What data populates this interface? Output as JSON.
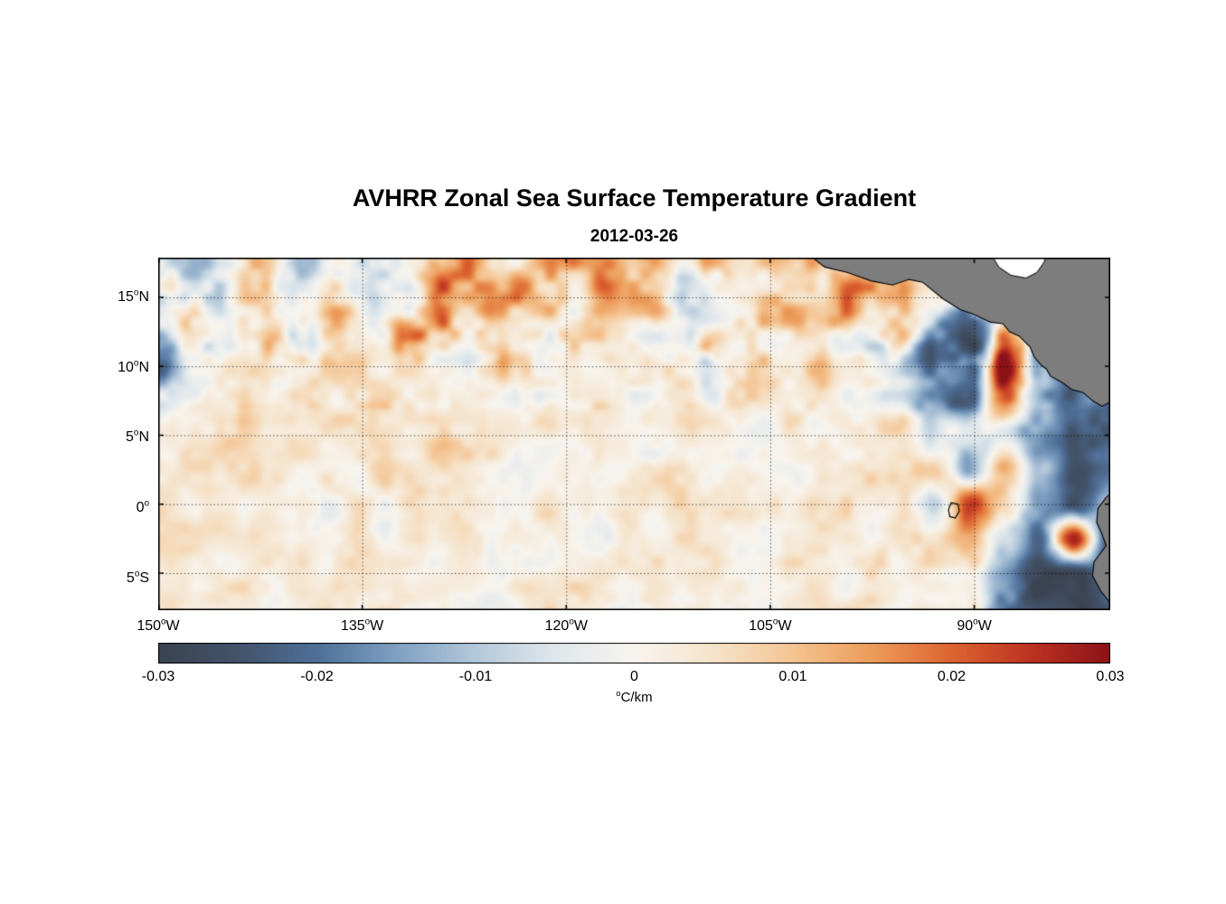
{
  "chart_data": {
    "type": "heatmap",
    "title": "AVHRR Zonal Sea Surface Temperature Gradient",
    "subtitle": "2012-03-26",
    "units_label": "C/km",
    "deg_symbol": "o",
    "lon_range": [
      -150,
      -80
    ],
    "lat_range": [
      -7.69,
      17.88
    ],
    "lon_tick_values": [
      -150,
      -135,
      -120,
      -105,
      -90
    ],
    "lat_tick_values": [
      15,
      10,
      5,
      0,
      -5
    ],
    "lon_gridlines": [
      -135,
      -120,
      -105,
      -90
    ],
    "lat_gridlines": [
      15,
      10,
      5,
      0,
      -5
    ],
    "lon_ticks": [
      {
        "deg": "150",
        "hem": "W"
      },
      {
        "deg": "135",
        "hem": "W"
      },
      {
        "deg": "120",
        "hem": "W"
      },
      {
        "deg": "105",
        "hem": "W"
      },
      {
        "deg": "90",
        "hem": "W"
      }
    ],
    "lat_ticks": [
      {
        "deg": "15",
        "hem": "N"
      },
      {
        "deg": "10",
        "hem": "N"
      },
      {
        "deg": "5",
        "hem": "N"
      },
      {
        "deg": "0",
        "hem": ""
      },
      {
        "deg": "5",
        "hem": "S"
      }
    ],
    "colorbar": {
      "min": -0.03,
      "max": 0.03,
      "tick_labels": [
        "-0.03",
        "-0.02",
        "-0.01",
        "0",
        "0.01",
        "0.02",
        "0.03"
      ],
      "stops": [
        {
          "v": -0.03,
          "c": "#3b4351"
        },
        {
          "v": -0.025,
          "c": "#43536a"
        },
        {
          "v": -0.02,
          "c": "#4f7099"
        },
        {
          "v": -0.015,
          "c": "#7fa0c2"
        },
        {
          "v": -0.01,
          "c": "#b3c8da"
        },
        {
          "v": -0.005,
          "c": "#dfe7ec"
        },
        {
          "v": 0.0,
          "c": "#f7f4ee"
        },
        {
          "v": 0.005,
          "c": "#f5e3cb"
        },
        {
          "v": 0.01,
          "c": "#f4c492"
        },
        {
          "v": 0.015,
          "c": "#ec9c5a"
        },
        {
          "v": 0.02,
          "c": "#dd6430"
        },
        {
          "v": 0.025,
          "c": "#bd3322"
        },
        {
          "v": 0.03,
          "c": "#8c1218"
        }
      ]
    },
    "grid_units": 0.001,
    "values_orientation": "rows north-to-south over lat_range, cols west-to-east over lon_range, values in units of grid_units (degC/km)",
    "values": [
      [
        3,
        -4,
        2,
        6,
        -8,
        4,
        -6,
        3,
        10,
        14,
        6,
        16,
        8,
        12,
        15,
        5,
        10,
        4,
        14,
        3,
        12,
        18,
        6,
        5,
        0,
        0,
        0,
        0
      ],
      [
        -10,
        -5,
        3,
        5,
        -8,
        3,
        -10,
        -4,
        14,
        18,
        12,
        14,
        6,
        10,
        12,
        4,
        6,
        3,
        8,
        8,
        15,
        20,
        10,
        -5,
        0,
        0,
        0,
        0
      ],
      [
        -6,
        2,
        4,
        3,
        -5,
        8,
        -8,
        12,
        20,
        10,
        4,
        8,
        5,
        6,
        3,
        2,
        4,
        2,
        3,
        5,
        4,
        10,
        -12,
        -15,
        8,
        -10,
        0,
        0
      ],
      [
        -20,
        -8,
        2,
        6,
        3,
        2,
        3,
        4,
        6,
        3,
        8,
        4,
        2,
        3,
        2,
        3,
        2,
        3,
        2,
        4,
        3,
        -5,
        -20,
        -25,
        28,
        -12,
        -18,
        0
      ],
      [
        -6,
        2,
        3,
        4,
        2,
        3,
        2,
        5,
        3,
        4,
        2,
        3,
        4,
        2,
        3,
        2,
        2,
        3,
        2,
        3,
        2,
        -4,
        -15,
        -22,
        25,
        -15,
        -20,
        -25
      ],
      [
        3,
        2,
        4,
        2,
        3,
        2,
        3,
        2,
        4,
        2,
        3,
        2,
        2,
        3,
        2,
        2,
        3,
        2,
        2,
        3,
        2,
        3,
        -5,
        -8,
        -6,
        -18,
        -28,
        -22
      ],
      [
        2,
        3,
        2,
        3,
        2,
        2,
        3,
        2,
        3,
        2,
        2,
        3,
        2,
        2,
        3,
        4,
        3,
        4,
        3,
        4,
        3,
        5,
        8,
        -18,
        12,
        -10,
        -25,
        -20
      ],
      [
        3,
        2,
        3,
        2,
        3,
        2,
        2,
        3,
        2,
        3,
        2,
        3,
        4,
        3,
        5,
        3,
        4,
        3,
        4,
        3,
        4,
        5,
        -12,
        22,
        8,
        -15,
        -25,
        -10
      ],
      [
        2,
        3,
        2,
        3,
        2,
        3,
        2,
        2,
        3,
        2,
        3,
        2,
        3,
        2,
        3,
        2,
        3,
        2,
        3,
        2,
        3,
        4,
        6,
        14,
        -8,
        -20,
        28,
        -25
      ],
      [
        3,
        2,
        3,
        2,
        2,
        3,
        2,
        3,
        2,
        2,
        3,
        2,
        2,
        3,
        2,
        2,
        3,
        2,
        2,
        3,
        2,
        3,
        4,
        5,
        -15,
        -25,
        -28,
        -20
      ],
      [
        2,
        3,
        2,
        2,
        3,
        2,
        2,
        3,
        2,
        3,
        2,
        2,
        3,
        2,
        2,
        3,
        2,
        2,
        3,
        2,
        4,
        3,
        5,
        6,
        -18,
        -26,
        -30,
        -25
      ]
    ],
    "land_color": "#7d7d7d",
    "coast_color": "#000000",
    "missing_color": "#ffffff",
    "land_polygons": [
      [
        [
          -102.3,
          18.2
        ],
        [
          -101.0,
          17.2
        ],
        [
          -99.3,
          16.8
        ],
        [
          -97.6,
          16.2
        ],
        [
          -96.0,
          15.9
        ],
        [
          -94.8,
          16.3
        ],
        [
          -93.8,
          16.1
        ],
        [
          -92.3,
          14.9
        ],
        [
          -91.0,
          14.1
        ],
        [
          -90.1,
          13.8
        ],
        [
          -88.8,
          13.2
        ],
        [
          -87.9,
          13.1
        ],
        [
          -87.4,
          12.5
        ],
        [
          -86.7,
          12.2
        ],
        [
          -85.9,
          11.4
        ],
        [
          -85.6,
          10.7
        ],
        [
          -85.1,
          10.1
        ],
        [
          -84.7,
          9.8
        ],
        [
          -84.4,
          9.3
        ],
        [
          -83.5,
          8.8
        ],
        [
          -82.8,
          8.3
        ],
        [
          -82.0,
          8.1
        ],
        [
          -81.3,
          7.5
        ],
        [
          -80.6,
          7.1
        ],
        [
          -80.0,
          7.4
        ],
        [
          -79.4,
          7.8
        ],
        [
          -78.8,
          7.6
        ],
        [
          -78.5,
          7.9
        ],
        [
          -78.5,
          18.2
        ]
      ],
      [
        [
          -78.5,
          1.6
        ],
        [
          -79.6,
          1.1
        ],
        [
          -80.3,
          0.5
        ],
        [
          -80.9,
          -0.3
        ],
        [
          -81.0,
          -1.3
        ],
        [
          -80.6,
          -2.2
        ],
        [
          -80.3,
          -3.0
        ],
        [
          -81.2,
          -4.2
        ],
        [
          -81.3,
          -5.2
        ],
        [
          -80.7,
          -6.3
        ],
        [
          -79.9,
          -7.3
        ],
        [
          -79.4,
          -8.2
        ],
        [
          -78.5,
          -8.2
        ]
      ]
    ],
    "missing_polygons": [
      [
        [
          -88.8,
          18.2
        ],
        [
          -88.2,
          17.2
        ],
        [
          -87.3,
          16.6
        ],
        [
          -86.2,
          16.4
        ],
        [
          -85.4,
          16.8
        ],
        [
          -84.9,
          17.5
        ],
        [
          -84.6,
          18.2
        ]
      ]
    ],
    "island_outlines": [
      [
        [
          -91.7,
          0.1
        ],
        [
          -91.2,
          0.0
        ],
        [
          -91.1,
          -0.5
        ],
        [
          -91.4,
          -1.0
        ],
        [
          -91.8,
          -0.9
        ],
        [
          -91.9,
          -0.4
        ]
      ]
    ]
  }
}
